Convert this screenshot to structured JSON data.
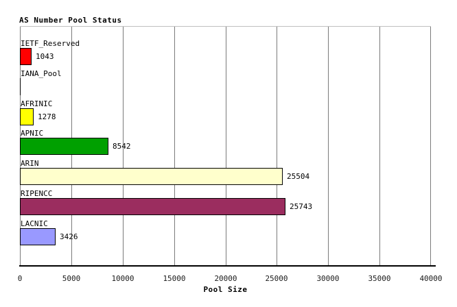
{
  "chart_data": {
    "type": "bar",
    "orientation": "horizontal",
    "title": "AS Number Pool Status",
    "xlabel": "Pool Size",
    "xlim": [
      0,
      40000
    ],
    "grid": true,
    "legend": "none",
    "x_ticks": [
      0,
      5000,
      10000,
      15000,
      20000,
      25000,
      30000,
      35000,
      40000
    ],
    "x_tick_labels": [
      "0",
      "5000",
      "10000",
      "15000",
      "20000",
      "25000",
      "30000",
      "35000",
      "40000"
    ],
    "categories": [
      "IETF_Reserved",
      "IANA_Pool",
      "AFRINIC",
      "APNIC",
      "ARIN",
      "RIPENCC",
      "LACNIC"
    ],
    "values": [
      1043,
      0,
      1278,
      8542,
      25504,
      25743,
      3426
    ],
    "value_labels": [
      "1043",
      "",
      "1278",
      "8542",
      "25504",
      "25743",
      "3426"
    ],
    "bar_colors": [
      "#ff0000",
      "#ffffff",
      "#ffff00",
      "#00a000",
      "#ffffcc",
      "#9b2d5f",
      "#9999ff"
    ],
    "colors": {
      "background": "#ffffff",
      "gridline": "#7a7a7a",
      "plot_top_border": "#c0c0c0",
      "axis_line": "#000000",
      "text": "#000000"
    }
  }
}
